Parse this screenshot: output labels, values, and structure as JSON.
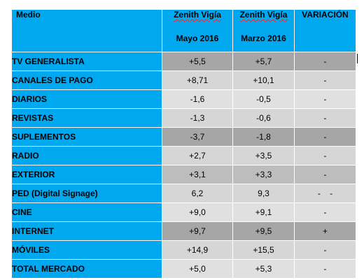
{
  "table": {
    "headers": {
      "medio": "Medio",
      "col1_line1": "Zenith Vigía",
      "col1_line2": "Mayo 2016",
      "col2_line1": "Zenith Vigía",
      "col2_line2": "Marzo 2016",
      "col3": "VARIACIÓN"
    },
    "rows": [
      {
        "medio": "TV GENERALISTA",
        "mayo": "+5,5",
        "marzo": "+5,7",
        "variacion": "-"
      },
      {
        "medio": "CANALES DE PAGO",
        "mayo": "+8,71",
        "marzo": "+10,1",
        "variacion": "-"
      },
      {
        "medio": "DIARIOS",
        "mayo": "-1,6",
        "marzo": "-0,5",
        "variacion": "-"
      },
      {
        "medio": "REVISTAS",
        "mayo": "-1,3",
        "marzo": "-0,6",
        "variacion": "-"
      },
      {
        "medio": "SUPLEMENTOS",
        "mayo": "-3,7",
        "marzo": "-1,8",
        "variacion": "-"
      },
      {
        "medio": "RADIO",
        "mayo": "+2,7",
        "marzo": "+3,5",
        "variacion": "-"
      },
      {
        "medio": "EXTERIOR",
        "mayo": "+3,1",
        "marzo": "+3,3",
        "variacion": "-"
      },
      {
        "medio": "PED (Digital Signage)",
        "mayo": "6,2",
        "marzo": "9,3",
        "variacion": "-    -"
      },
      {
        "medio": "CINE",
        "mayo": "+9,0",
        "marzo": "+9,1",
        "variacion": "-"
      },
      {
        "medio": "INTERNET",
        "mayo": "+9,7",
        "marzo": "+9,5",
        "variacion": "+"
      },
      {
        "medio": "MÓVILES",
        "mayo": "+14,9",
        "marzo": "+15,5",
        "variacion": "-"
      },
      {
        "medio": "TOTAL MERCADO",
        "mayo": "+5,0",
        "marzo": "+5,3",
        "variacion": "-"
      }
    ]
  },
  "colors": {
    "header_blue": "#00a8f0",
    "cell_gray_dark": "#a6a6a6",
    "cell_gray_mid": "#bdbdbd",
    "cell_gray_light": "#d6d6d6"
  }
}
